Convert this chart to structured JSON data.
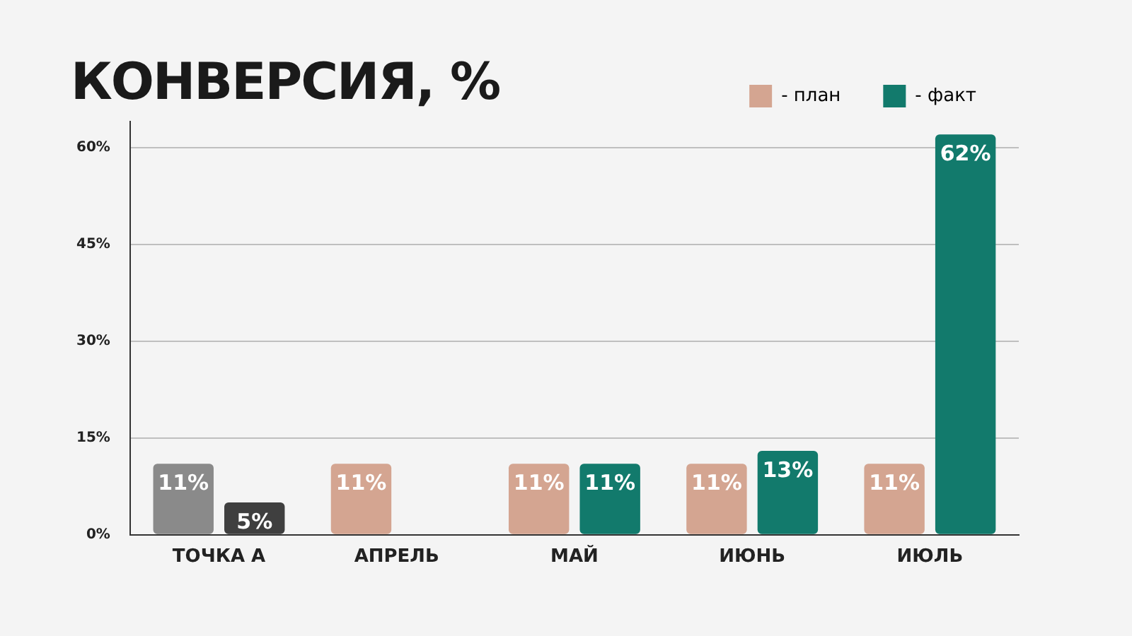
{
  "chart_data": {
    "type": "bar",
    "title": "КОНВЕРСИЯ, %",
    "categories": [
      "ТОЧКА А",
      "АПРЕЛЬ",
      "МАЙ",
      "ИЮНЬ",
      "ИЮЛЬ"
    ],
    "series": [
      {
        "name": "- план",
        "color": "#d4a591",
        "colors": [
          "#8a8a8a",
          "#d4a591",
          "#d4a591",
          "#d4a591",
          "#d4a591"
        ],
        "values": [
          11,
          11,
          11,
          11,
          11
        ],
        "value_labels": [
          "11%",
          "11%",
          "11%",
          "11%",
          "11%"
        ]
      },
      {
        "name": "- факт",
        "color": "#127a6c",
        "colors": [
          "#3f3f3f",
          "#127a6c",
          "#127a6c",
          "#127a6c",
          "#127a6c"
        ],
        "values": [
          5,
          null,
          11,
          13,
          62
        ],
        "value_labels": [
          "5%",
          null,
          "11%",
          "13%",
          "62%"
        ]
      }
    ],
    "ylim": [
      0,
      64
    ],
    "yticks": [
      {
        "value": 0,
        "label": "0%"
      },
      {
        "value": 15,
        "label": "15%"
      },
      {
        "value": 30,
        "label": "30%"
      },
      {
        "value": 45,
        "label": "45%"
      },
      {
        "value": 60,
        "label": "60%"
      }
    ],
    "grid": "y",
    "legend": "top right"
  }
}
